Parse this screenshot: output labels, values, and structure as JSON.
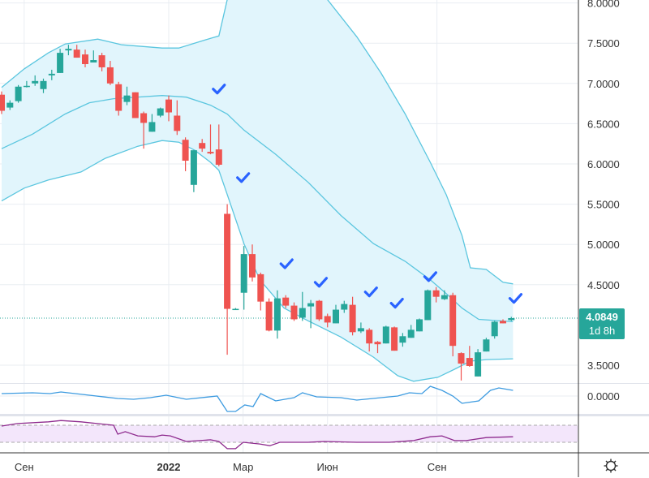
{
  "chart_data": {
    "type": "candlestick",
    "title": "",
    "price_axis": {
      "ticks": [
        "8.0000",
        "7.5000",
        "7.0000",
        "6.5000",
        "6.0000",
        "5.5000",
        "5.0000",
        "4.5000",
        "3.5000"
      ],
      "tick_values": [
        8.0,
        7.5,
        7.0,
        6.5,
        6.0,
        5.5,
        5.0,
        4.5,
        3.5
      ],
      "ylim": [
        3.2,
        8.0
      ]
    },
    "time_axis": {
      "labels": [
        {
          "text": "Сен",
          "index": 2.7,
          "bold": false
        },
        {
          "text": "2022",
          "index": 20,
          "bold": true
        },
        {
          "text": "Мар",
          "index": 28.9,
          "bold": false
        },
        {
          "text": "Июн",
          "index": 39,
          "bold": false
        },
        {
          "text": "Сен",
          "index": 52.1,
          "bold": false
        }
      ]
    },
    "last_price": {
      "value": "4.0849",
      "countdown": "1d 8h",
      "price": 4.0849
    },
    "colors": {
      "up": "#26a69a",
      "down": "#ef5350",
      "band_line": "#5bc6df",
      "band_fill": "#e1f5fc",
      "check": "#2962ff",
      "osc1": "#3d9be0",
      "osc2": "#8e2a8e",
      "osc2_fill": "#f3e6fb"
    },
    "candles_ohlc": [
      [
        6.86,
        6.9,
        6.62,
        6.66
      ],
      [
        6.7,
        6.79,
        6.67,
        6.76
      ],
      [
        6.78,
        6.98,
        6.76,
        6.96
      ],
      [
        6.96,
        7.03,
        6.95,
        6.97
      ],
      [
        7.0,
        7.1,
        6.97,
        7.03
      ],
      [
        6.93,
        7.06,
        6.88,
        7.03
      ],
      [
        7.1,
        7.17,
        7.04,
        7.12
      ],
      [
        7.13,
        7.43,
        7.13,
        7.38
      ],
      [
        7.41,
        7.48,
        7.35,
        7.43
      ],
      [
        7.42,
        7.48,
        7.32,
        7.32
      ],
      [
        7.36,
        7.42,
        7.2,
        7.24
      ],
      [
        7.26,
        7.41,
        7.26,
        7.29
      ],
      [
        7.35,
        7.38,
        7.15,
        7.2
      ],
      [
        7.2,
        7.28,
        6.98,
        7.0
      ],
      [
        6.99,
        7.02,
        6.6,
        6.66
      ],
      [
        6.77,
        6.96,
        6.73,
        6.85
      ],
      [
        6.89,
        6.89,
        6.57,
        6.57
      ],
      [
        6.63,
        6.65,
        6.19,
        6.51
      ],
      [
        6.4,
        6.62,
        6.4,
        6.52
      ],
      [
        6.6,
        6.7,
        6.58,
        6.69
      ],
      [
        6.8,
        6.85,
        6.53,
        6.64
      ],
      [
        6.6,
        6.79,
        6.36,
        6.41
      ],
      [
        6.3,
        6.33,
        5.91,
        6.04
      ],
      [
        5.74,
        6.17,
        5.65,
        6.17
      ],
      [
        6.26,
        6.31,
        6.15,
        6.19
      ],
      [
        6.15,
        6.49,
        6.12,
        6.13
      ],
      [
        6.18,
        6.49,
        5.97,
        5.99
      ],
      [
        5.38,
        5.5,
        3.63,
        4.2
      ],
      [
        4.2,
        4.21,
        4.19,
        4.2
      ],
      [
        4.4,
        4.98,
        4.19,
        4.88
      ],
      [
        4.88,
        5.0,
        4.54,
        4.59
      ],
      [
        4.63,
        4.65,
        4.18,
        4.29
      ],
      [
        4.29,
        4.33,
        3.92,
        3.93
      ],
      [
        3.93,
        4.43,
        3.83,
        4.33
      ],
      [
        4.34,
        4.37,
        4.21,
        4.24
      ],
      [
        4.24,
        4.28,
        4.05,
        4.07
      ],
      [
        4.09,
        4.41,
        4.05,
        4.21
      ],
      [
        4.23,
        4.31,
        3.96,
        4.27
      ],
      [
        4.3,
        4.31,
        4.05,
        4.07
      ],
      [
        4.11,
        4.14,
        3.97,
        4.03
      ],
      [
        4.02,
        4.25,
        4.02,
        4.19
      ],
      [
        4.19,
        4.3,
        4.15,
        4.26
      ],
      [
        4.25,
        4.35,
        3.87,
        3.91
      ],
      [
        3.92,
        4.03,
        3.9,
        3.96
      ],
      [
        3.94,
        3.96,
        3.67,
        3.77
      ],
      [
        3.79,
        3.8,
        3.65,
        3.76
      ],
      [
        3.77,
        3.99,
        3.77,
        3.98
      ],
      [
        3.97,
        3.98,
        3.68,
        3.68
      ],
      [
        3.78,
        3.9,
        3.73,
        3.86
      ],
      [
        3.84,
        4.0,
        3.84,
        3.94
      ],
      [
        3.92,
        4.08,
        3.92,
        4.07
      ],
      [
        4.06,
        4.44,
        4.06,
        4.43
      ],
      [
        4.43,
        4.47,
        4.28,
        4.35
      ],
      [
        4.32,
        4.43,
        4.31,
        4.37
      ],
      [
        4.37,
        4.4,
        3.61,
        3.74
      ],
      [
        3.65,
        3.66,
        3.31,
        3.52
      ],
      [
        3.59,
        3.74,
        3.48,
        3.49
      ],
      [
        3.36,
        3.7,
        3.36,
        3.66
      ],
      [
        3.67,
        3.84,
        3.67,
        3.82
      ],
      [
        3.86,
        4.05,
        3.83,
        4.04
      ],
      [
        4.05,
        4.07,
        4.02,
        4.02
      ],
      [
        4.06,
        4.1,
        4.05,
        4.0849
      ]
    ],
    "bollinger": {
      "upper": [
        [
          0,
          6.95
        ],
        [
          2.7,
          7.18
        ],
        [
          5.6,
          7.38
        ],
        [
          7.6,
          7.49
        ],
        [
          11.5,
          7.55
        ],
        [
          14.4,
          7.48
        ],
        [
          19.2,
          7.44
        ],
        [
          21.2,
          7.44
        ],
        [
          25,
          7.56
        ],
        [
          26,
          7.59
        ],
        [
          27,
          8.04
        ],
        [
          28,
          8.4
        ],
        [
          33,
          9.0
        ],
        [
          38,
          8.3
        ],
        [
          39,
          8.04
        ],
        [
          42.5,
          7.58
        ],
        [
          45.4,
          7.13
        ],
        [
          48.3,
          6.62
        ],
        [
          51.3,
          6.02
        ],
        [
          53.2,
          5.62
        ],
        [
          55.1,
          5.11
        ],
        [
          56.1,
          4.71
        ],
        [
          58,
          4.69
        ],
        [
          60,
          4.53
        ],
        [
          61.2,
          4.51
        ]
      ],
      "middle": [
        [
          0,
          6.19
        ],
        [
          3.7,
          6.37
        ],
        [
          7.6,
          6.62
        ],
        [
          10.5,
          6.76
        ],
        [
          13.4,
          6.81
        ],
        [
          19.2,
          6.85
        ],
        [
          22.1,
          6.83
        ],
        [
          25,
          6.73
        ],
        [
          27,
          6.62
        ],
        [
          29,
          6.42
        ],
        [
          32.8,
          6.12
        ],
        [
          36.7,
          5.77
        ],
        [
          40.6,
          5.36
        ],
        [
          44.5,
          5.01
        ],
        [
          48.3,
          4.79
        ],
        [
          51.3,
          4.56
        ],
        [
          53.2,
          4.39
        ],
        [
          55.1,
          4.21
        ],
        [
          57.1,
          4.07
        ],
        [
          61.2,
          4.04
        ]
      ],
      "lower": [
        [
          0,
          5.54
        ],
        [
          2.7,
          5.7
        ],
        [
          5.6,
          5.8
        ],
        [
          9.5,
          5.9
        ],
        [
          12.4,
          6.07
        ],
        [
          16.3,
          6.22
        ],
        [
          19.2,
          6.29
        ],
        [
          21.2,
          6.27
        ],
        [
          23.1,
          6.17
        ],
        [
          25,
          6.02
        ],
        [
          26,
          5.92
        ],
        [
          27,
          5.62
        ],
        [
          29,
          5.01
        ],
        [
          30.9,
          4.56
        ],
        [
          33.8,
          4.21
        ],
        [
          36.7,
          4.05
        ],
        [
          40.6,
          3.85
        ],
        [
          44.5,
          3.6
        ],
        [
          47.4,
          3.37
        ],
        [
          49.3,
          3.3
        ],
        [
          52.2,
          3.35
        ],
        [
          54.2,
          3.45
        ],
        [
          56.1,
          3.55
        ],
        [
          58,
          3.57
        ],
        [
          61.2,
          3.58
        ]
      ]
    },
    "signals": [
      [
        26,
        6.93
      ],
      [
        28.9,
        5.83
      ],
      [
        34.1,
        4.76
      ],
      [
        38.2,
        4.53
      ],
      [
        44.2,
        4.41
      ],
      [
        47.3,
        4.27
      ],
      [
        51.3,
        4.6
      ],
      [
        61.5,
        4.33
      ]
    ],
    "oscillator1": {
      "zero_label": "0.0000",
      "points": [
        [
          0,
          0.3
        ],
        [
          3.7,
          0.4
        ],
        [
          5.8,
          0.3
        ],
        [
          7.1,
          0.5
        ],
        [
          10.5,
          0.1
        ],
        [
          13.9,
          -0.3
        ],
        [
          15.8,
          -0.4
        ],
        [
          17.8,
          -0.2
        ],
        [
          19.7,
          0.1
        ],
        [
          22.1,
          -0.4
        ],
        [
          25.8,
          0
        ],
        [
          27,
          -1.9
        ],
        [
          28,
          -1.9
        ],
        [
          29.1,
          -1.1
        ],
        [
          30.1,
          -1.3
        ],
        [
          31,
          0.3
        ],
        [
          32.8,
          -0.6
        ],
        [
          35,
          -0.2
        ],
        [
          36,
          0.4
        ],
        [
          37.7,
          -0.1
        ],
        [
          40.6,
          -0.2
        ],
        [
          42.5,
          -0.5
        ],
        [
          45.4,
          -0.2
        ],
        [
          47.4,
          0
        ],
        [
          48.8,
          0.4
        ],
        [
          50.3,
          0.3
        ],
        [
          51.3,
          1.2
        ],
        [
          52.7,
          0.7
        ],
        [
          54,
          0
        ],
        [
          55.1,
          -0.9
        ],
        [
          57.1,
          -0.6
        ],
        [
          58.5,
          0.7
        ],
        [
          59.5,
          1.0
        ],
        [
          61.2,
          0.7
        ]
      ]
    },
    "oscillator2": {
      "band": [
        30,
        70
      ],
      "points": [
        [
          0,
          68
        ],
        [
          1.9,
          74
        ],
        [
          5.6,
          78
        ],
        [
          7.1,
          81
        ],
        [
          9.5,
          78
        ],
        [
          13.4,
          70
        ],
        [
          13.9,
          49
        ],
        [
          14.8,
          55
        ],
        [
          16.3,
          45
        ],
        [
          18.3,
          43
        ],
        [
          19.2,
          47
        ],
        [
          20.2,
          45
        ],
        [
          22.1,
          32
        ],
        [
          25,
          36
        ],
        [
          26,
          32
        ],
        [
          27,
          15
        ],
        [
          28,
          15
        ],
        [
          28.9,
          30
        ],
        [
          30.9,
          26
        ],
        [
          32.1,
          22
        ],
        [
          33.3,
          30
        ],
        [
          36.7,
          30
        ],
        [
          38.6,
          32
        ],
        [
          42.5,
          30
        ],
        [
          46.4,
          30
        ],
        [
          49.3,
          34
        ],
        [
          51.3,
          43
        ],
        [
          52.7,
          45
        ],
        [
          54.2,
          34
        ],
        [
          55.6,
          34
        ],
        [
          58,
          41
        ],
        [
          61.2,
          43
        ]
      ]
    }
  }
}
